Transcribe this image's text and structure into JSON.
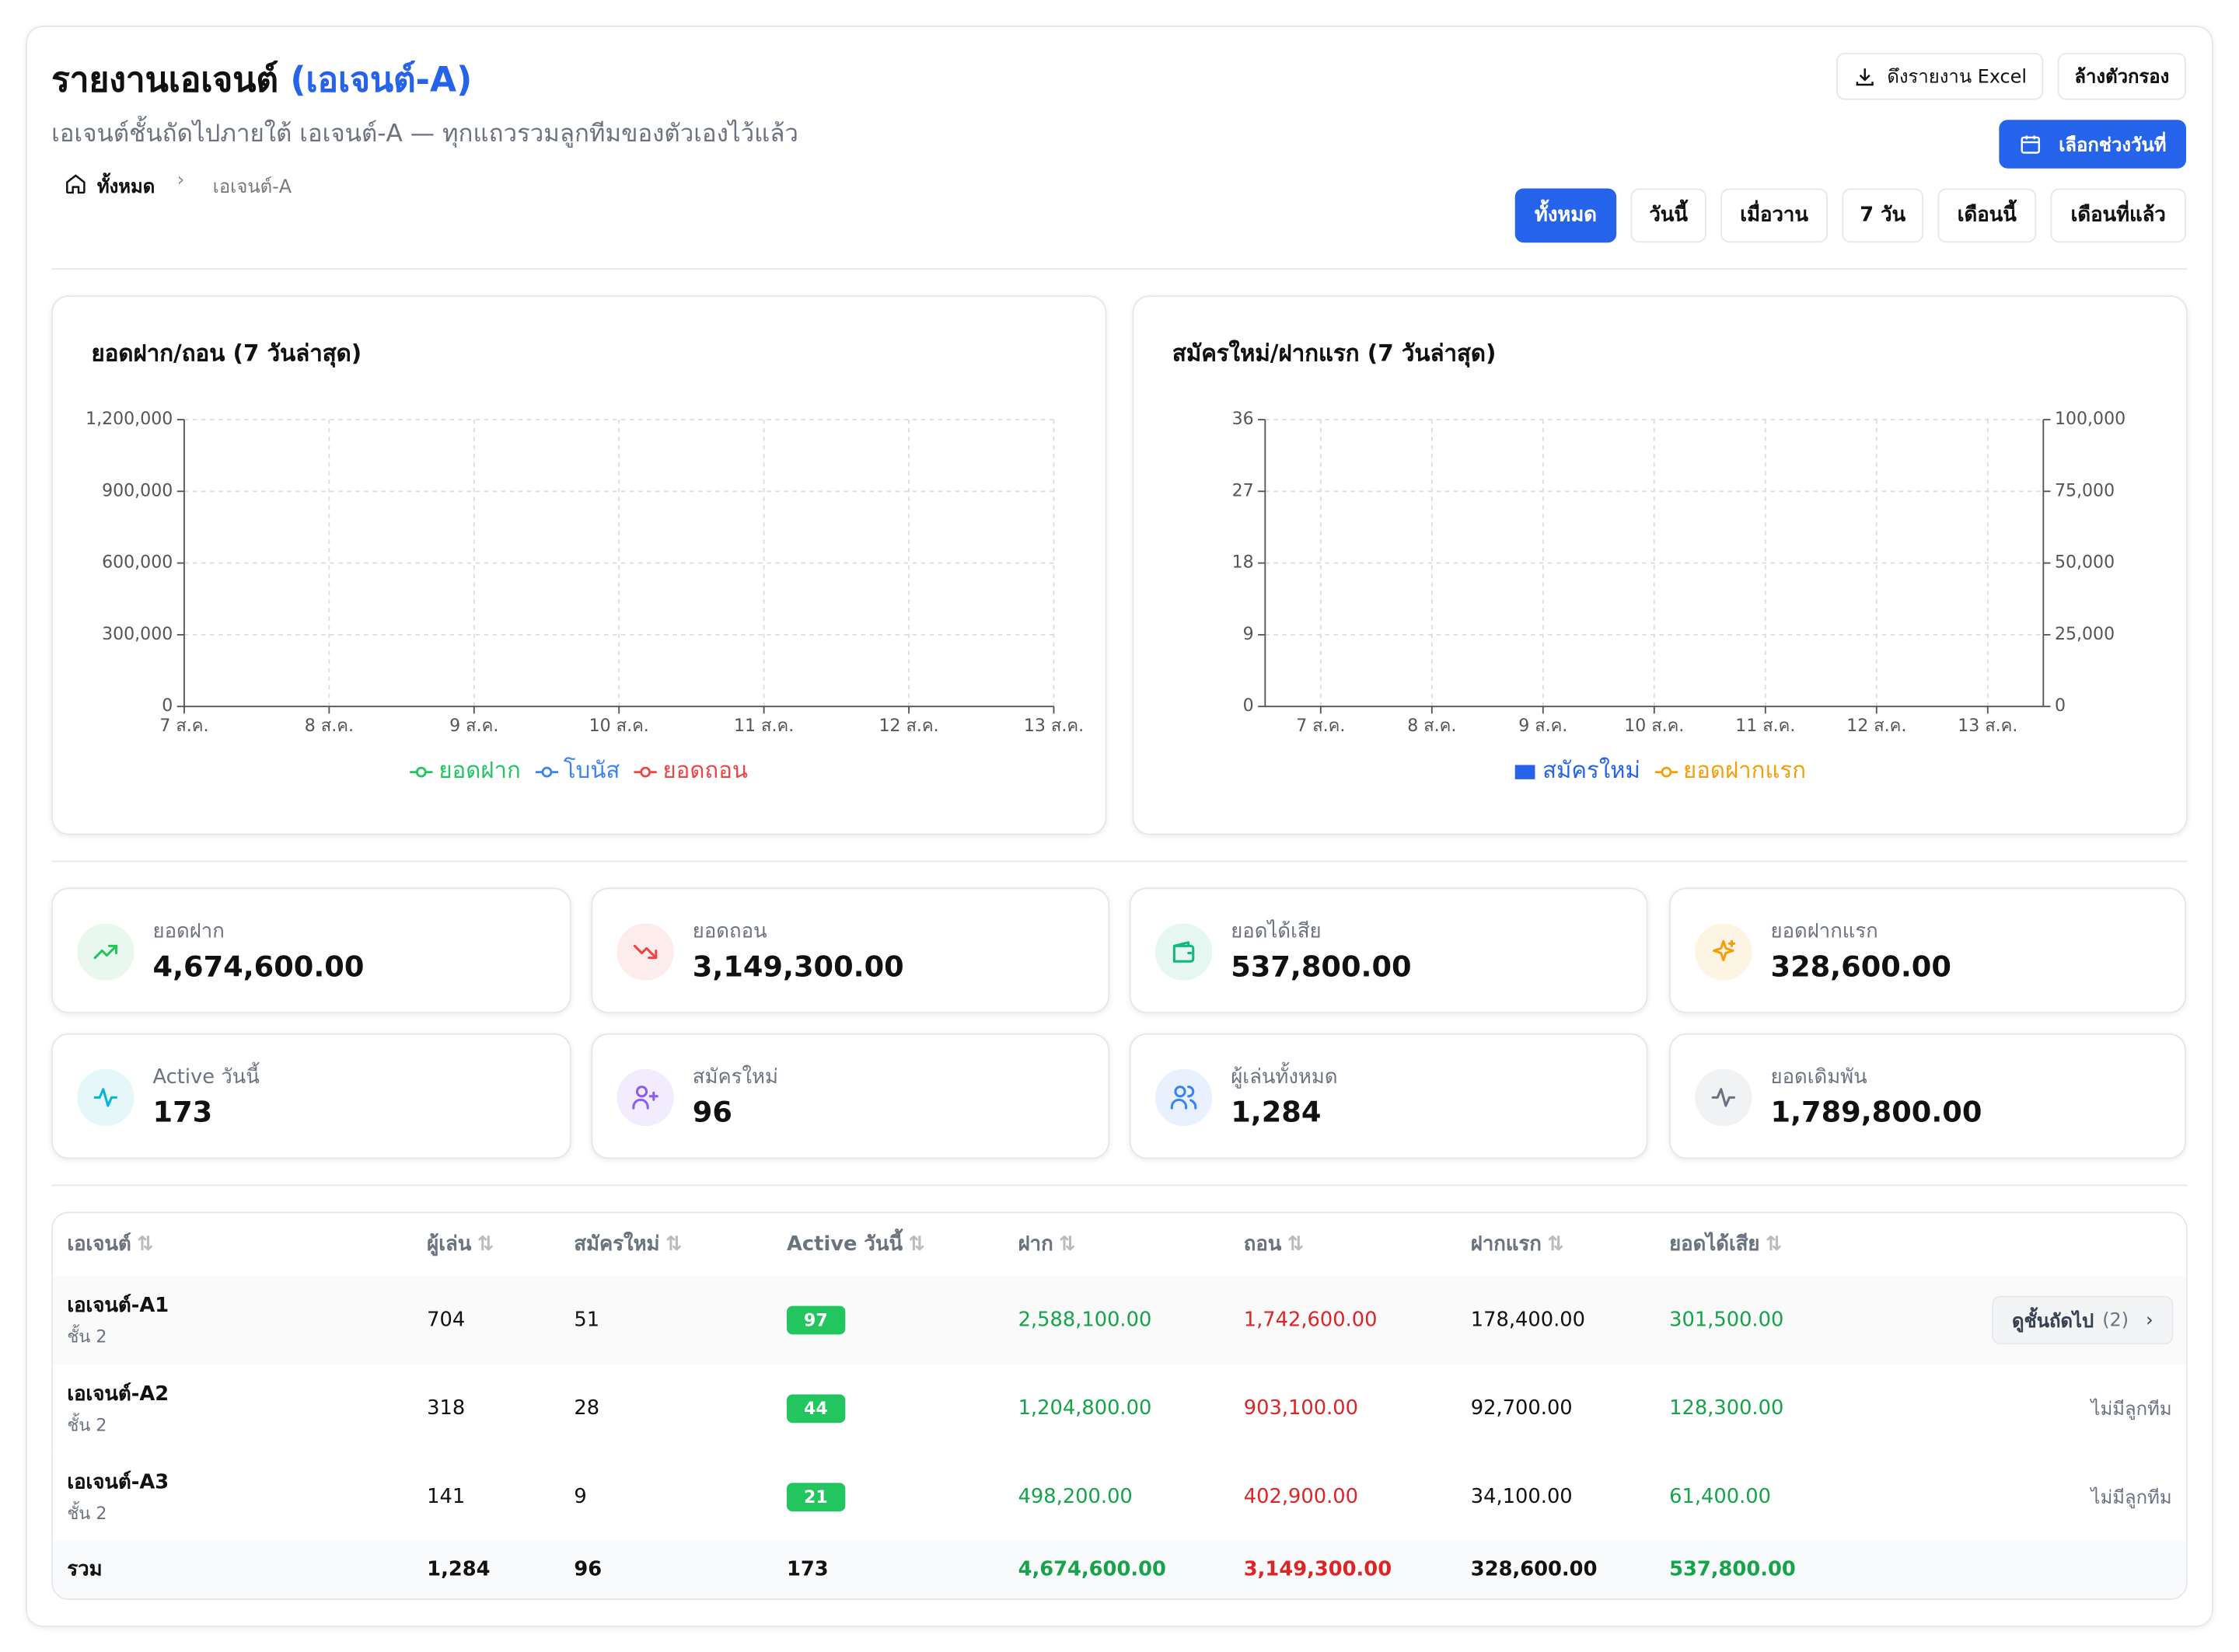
{
  "header": {
    "title": "รายงานเอเจนต์",
    "title_agent": "(เอเจนต์-A)",
    "subtitle": "เอเจนต์ชั้นถัดไปภายใต้ เอเจนต์-A — ทุกแถวรวมลูกทีมของตัวเองไว้แล้ว",
    "breadcrumb": [
      "ทั้งหมด",
      "เอเจนต์-A"
    ],
    "export_button": "ดึงรายงาน Excel",
    "clear_button": "ล้างตัวกรอง",
    "date_button": "เลือกช่วงวันที่",
    "filters": [
      "ทั้งหมด",
      "วันนี้",
      "เมื่อวาน",
      "7 วัน",
      "เดือนนี้",
      "เดือนที่แล้ว"
    ]
  },
  "chart_data": [
    {
      "type": "line",
      "title": "ยอดฝาก/ถอน (7 วันล่าสุด)",
      "categories": [
        "7 ส.ค.",
        "8 ส.ค.",
        "9 ส.ค.",
        "10 ส.ค.",
        "11 ส.ค.",
        "12 ส.ค.",
        "13 ส.ค."
      ],
      "series": [
        {
          "name": "ยอดฝาก",
          "color": "#22c55e",
          "values": [
            null,
            null,
            null,
            null,
            null,
            null,
            null
          ]
        },
        {
          "name": "โบนัส",
          "color": "#3b82f6",
          "values": [
            null,
            null,
            null,
            null,
            null,
            null,
            null
          ]
        },
        {
          "name": "ยอดถอน",
          "color": "#ef4444",
          "values": [
            null,
            null,
            null,
            null,
            null,
            null,
            null
          ]
        }
      ],
      "ylim": [
        0,
        1200000
      ],
      "yticks": [
        0,
        {
          "value": 300000,
          "label": "300,000"
        },
        {
          "value": 600000,
          "label": "600,000"
        },
        {
          "value": 900000,
          "label": "900,000"
        },
        {
          "value": 1200000,
          "label": "1,200,000"
        }
      ],
      "grid": true
    },
    {
      "type": "bar",
      "title": "สมัครใหม่/ฝากแรก (7 วันล่าสุด)",
      "categories": [
        "7 ส.ค.",
        "8 ส.ค.",
        "9 ส.ค.",
        "10 ส.ค.",
        "11 ส.ค.",
        "12 ส.ค.",
        "13 ส.ค."
      ],
      "series": [
        {
          "name": "สมัครใหม่",
          "color": "#2563eb",
          "type": "bar",
          "values": [
            null,
            null,
            null,
            null,
            null,
            null,
            null
          ]
        },
        {
          "name": "ยอดฝากแรก",
          "color": "#f59e0b",
          "type": "line",
          "axis": "y2",
          "values": [
            null,
            null,
            null,
            null,
            null,
            null,
            null
          ]
        }
      ],
      "ylim": [
        0,
        36
      ],
      "yticks": [
        0,
        9,
        18,
        27,
        36
      ],
      "y2lim": [
        0,
        100000
      ],
      "y2ticks": [
        0,
        {
          "value": 25000,
          "label": "25,000"
        },
        {
          "value": 50000,
          "label": "50,000"
        },
        {
          "value": 75000,
          "label": "75,000"
        },
        {
          "value": 100000,
          "label": "100,000"
        }
      ],
      "grid": true
    }
  ],
  "stats": [
    {
      "label": "ยอดฝาก",
      "value": "4,674,600.00"
    },
    {
      "label": "ยอดถอน",
      "value": "3,149,300.00"
    },
    {
      "label": "ยอดได้เสีย",
      "value": "537,800.00"
    },
    {
      "label": "ยอดฝากแรก",
      "value": "328,600.00"
    },
    {
      "label": "Active วันนี้",
      "value": "173"
    },
    {
      "label": "สมัครใหม่",
      "value": "96"
    },
    {
      "label": "ผู้เล่นทั้งหมด",
      "value": "1,284"
    },
    {
      "label": "ยอดเดิมพัน",
      "value": "1,789,800.00"
    }
  ],
  "table": {
    "columns": [
      "เอเจนต์",
      "ผู้เล่น",
      "สมัครใหม่",
      "Active วันนี้",
      "ฝาก",
      "ถอน",
      "ฝากแรก",
      "ยอดได้เสีย"
    ],
    "rows": [
      [
        "เอเจนต์-A1",
        "ชั้น 2",
        "704",
        "51",
        "97",
        "2,588,100.00",
        "1,742,600.00",
        "178,400.00",
        "301,500.00",
        "ดูชั้นถัดไป",
        "(2)"
      ],
      [
        "เอเจนต์-A2",
        "ชั้น 2",
        "318",
        "28",
        "44",
        "1,204,800.00",
        "903,100.00",
        "92,700.00",
        "128,300.00",
        "ไม่มีลูกทีม"
      ],
      [
        "เอเจนต์-A3",
        "ชั้น 2",
        "141",
        "9",
        "21",
        "498,200.00",
        "402,900.00",
        "34,100.00",
        "61,400.00",
        "ไม่มีลูกทีม"
      ]
    ],
    "total": [
      "รวม",
      "1,284",
      "96",
      "173",
      "4,674,600.00",
      "3,149,300.00",
      "328,600.00",
      "537,800.00"
    ]
  }
}
